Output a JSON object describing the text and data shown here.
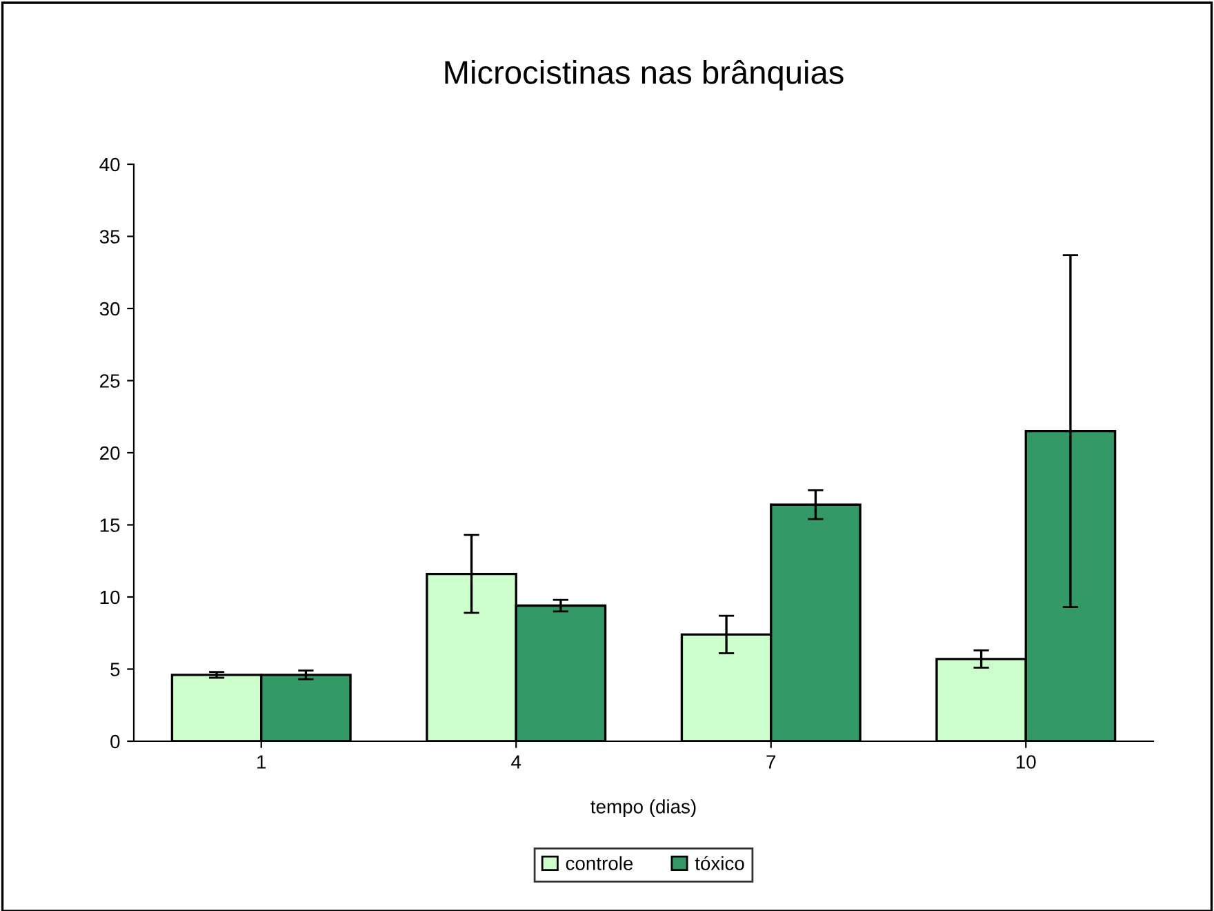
{
  "chart_data": {
    "type": "bar",
    "title": "Microcistinas nas brânquias",
    "xlabel": "tempo (dias)",
    "categories": [
      "1",
      "4",
      "7",
      "10"
    ],
    "series": [
      {
        "name": "controle",
        "color": "#ccffcc",
        "values": [
          4.6,
          11.6,
          7.4,
          5.7
        ],
        "errors": [
          0.2,
          2.7,
          1.3,
          0.6
        ]
      },
      {
        "name": "tóxico",
        "color": "#339966",
        "values": [
          4.6,
          9.4,
          16.4,
          21.5
        ],
        "errors": [
          0.3,
          0.4,
          1.0,
          12.2
        ]
      }
    ],
    "ylim": [
      0,
      40
    ],
    "yticks": [
      0,
      5,
      10,
      15,
      20,
      25,
      30,
      35,
      40
    ],
    "grid": false,
    "legend": "bottom"
  }
}
